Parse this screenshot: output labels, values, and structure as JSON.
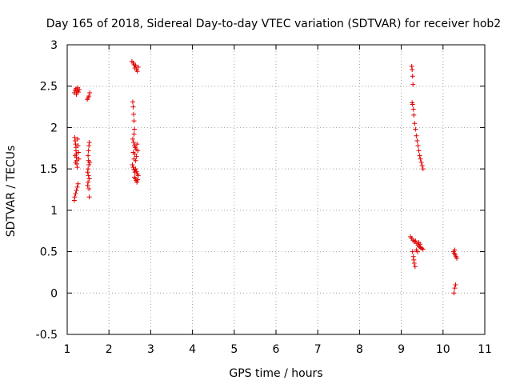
{
  "chart_data": {
    "type": "scatter",
    "title": "Day 165 of 2018, Sidereal Day-to-day VTEC variation (SDTVAR) for receiver hob2",
    "xlabel": "GPS time / hours",
    "ylabel": "SDTVAR / TECUs",
    "xlim": [
      1,
      11
    ],
    "ylim": [
      -0.5,
      3
    ],
    "x_ticks": [
      "1",
      "2",
      "3",
      "4",
      "5",
      "6",
      "7",
      "8",
      "9",
      "10",
      "11"
    ],
    "y_ticks": [
      "-0.5",
      "0",
      "0.5",
      "1",
      "1.5",
      "2",
      "2.5",
      "3"
    ],
    "grid": true,
    "marker": "+",
    "color": "#e00000",
    "series": [
      {
        "name": "SDTVAR",
        "points": [
          [
            1.17,
            2.42
          ],
          [
            1.19,
            2.45
          ],
          [
            1.21,
            2.47
          ],
          [
            1.22,
            2.4
          ],
          [
            1.24,
            2.44
          ],
          [
            1.25,
            2.48
          ],
          [
            1.27,
            2.43
          ],
          [
            1.29,
            2.46
          ],
          [
            1.18,
            1.88
          ],
          [
            1.19,
            1.84
          ],
          [
            1.2,
            1.8
          ],
          [
            1.21,
            1.76
          ],
          [
            1.21,
            1.72
          ],
          [
            1.22,
            1.68
          ],
          [
            1.22,
            1.64
          ],
          [
            1.23,
            1.6
          ],
          [
            1.23,
            1.56
          ],
          [
            1.24,
            1.52
          ],
          [
            1.25,
            1.86
          ],
          [
            1.26,
            1.78
          ],
          [
            1.27,
            1.7
          ],
          [
            1.28,
            1.62
          ],
          [
            1.2,
            1.58
          ],
          [
            1.19,
            1.66
          ],
          [
            1.17,
            1.12
          ],
          [
            1.18,
            1.16
          ],
          [
            1.2,
            1.2
          ],
          [
            1.22,
            1.24
          ],
          [
            1.24,
            1.28
          ],
          [
            1.26,
            1.32
          ],
          [
            1.48,
            2.34
          ],
          [
            1.5,
            2.36
          ],
          [
            1.52,
            2.38
          ],
          [
            1.54,
            2.42
          ],
          [
            1.53,
            1.82
          ],
          [
            1.52,
            1.78
          ],
          [
            1.51,
            1.72
          ],
          [
            1.5,
            1.66
          ],
          [
            1.51,
            1.6
          ],
          [
            1.52,
            1.55
          ],
          [
            1.5,
            1.5
          ],
          [
            1.49,
            1.46
          ],
          [
            1.51,
            1.42
          ],
          [
            1.53,
            1.38
          ],
          [
            1.5,
            1.34
          ],
          [
            1.49,
            1.3
          ],
          [
            1.52,
            1.26
          ],
          [
            1.54,
            1.58
          ],
          [
            1.53,
            1.16
          ],
          [
            2.55,
            2.8
          ],
          [
            2.58,
            2.78
          ],
          [
            2.6,
            2.76
          ],
          [
            2.62,
            2.72
          ],
          [
            2.64,
            2.75
          ],
          [
            2.66,
            2.7
          ],
          [
            2.68,
            2.68
          ],
          [
            2.7,
            2.73
          ],
          [
            2.57,
            2.31
          ],
          [
            2.58,
            2.25
          ],
          [
            2.59,
            2.16
          ],
          [
            2.6,
            2.08
          ],
          [
            2.61,
            1.98
          ],
          [
            2.6,
            1.92
          ],
          [
            2.57,
            1.86
          ],
          [
            2.59,
            1.82
          ],
          [
            2.61,
            1.78
          ],
          [
            2.63,
            1.76
          ],
          [
            2.65,
            1.74
          ],
          [
            2.67,
            1.8
          ],
          [
            2.69,
            1.72
          ],
          [
            2.58,
            1.7
          ],
          [
            2.62,
            1.68
          ],
          [
            2.66,
            1.65
          ],
          [
            2.6,
            1.62
          ],
          [
            2.64,
            1.6
          ],
          [
            2.56,
            1.55
          ],
          [
            2.58,
            1.52
          ],
          [
            2.6,
            1.49
          ],
          [
            2.62,
            1.46
          ],
          [
            2.64,
            1.5
          ],
          [
            2.66,
            1.47
          ],
          [
            2.68,
            1.44
          ],
          [
            2.7,
            1.42
          ],
          [
            2.61,
            1.4
          ],
          [
            2.63,
            1.38
          ],
          [
            2.65,
            1.36
          ],
          [
            2.67,
            1.34
          ],
          [
            2.69,
            1.37
          ],
          [
            9.25,
            2.74
          ],
          [
            9.26,
            2.7
          ],
          [
            9.27,
            2.62
          ],
          [
            9.28,
            2.52
          ],
          [
            9.26,
            2.3
          ],
          [
            9.27,
            2.28
          ],
          [
            9.29,
            2.22
          ],
          [
            9.3,
            2.15
          ],
          [
            9.32,
            2.05
          ],
          [
            9.34,
            1.98
          ],
          [
            9.36,
            1.9
          ],
          [
            9.38,
            1.84
          ],
          [
            9.4,
            1.78
          ],
          [
            9.42,
            1.72
          ],
          [
            9.44,
            1.66
          ],
          [
            9.46,
            1.62
          ],
          [
            9.48,
            1.58
          ],
          [
            9.5,
            1.54
          ],
          [
            9.52,
            1.5
          ],
          [
            9.22,
            0.68
          ],
          [
            9.25,
            0.66
          ],
          [
            9.28,
            0.64
          ],
          [
            9.31,
            0.62
          ],
          [
            9.34,
            0.63
          ],
          [
            9.37,
            0.6
          ],
          [
            9.4,
            0.58
          ],
          [
            9.43,
            0.56
          ],
          [
            9.46,
            0.55
          ],
          [
            9.49,
            0.54
          ],
          [
            9.52,
            0.53
          ],
          [
            9.27,
            0.5
          ],
          [
            9.29,
            0.44
          ],
          [
            9.3,
            0.4
          ],
          [
            9.31,
            0.36
          ],
          [
            9.33,
            0.32
          ],
          [
            9.36,
            0.52
          ],
          [
            9.39,
            0.5
          ],
          [
            9.42,
            0.61
          ],
          [
            9.45,
            0.59
          ],
          [
            10.25,
            0.5
          ],
          [
            10.27,
            0.48
          ],
          [
            10.29,
            0.46
          ],
          [
            10.31,
            0.44
          ],
          [
            10.33,
            0.42
          ],
          [
            10.28,
            0.52
          ],
          [
            10.26,
            0.0
          ],
          [
            10.28,
            0.06
          ],
          [
            10.3,
            0.1
          ]
        ]
      }
    ]
  }
}
